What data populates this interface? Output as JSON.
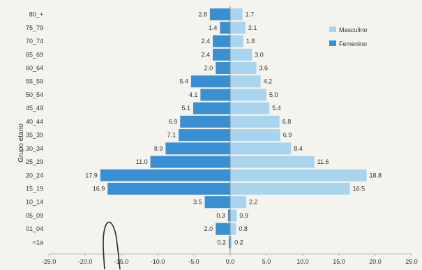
{
  "chart_data": {
    "type": "bar",
    "orientation": "horizontal",
    "title": "",
    "xlabel": "",
    "ylabel": "Grupo etario",
    "categories": [
      "80_+",
      "75_79",
      "70_74",
      "65_69",
      "60_64",
      "55_59",
      "50_54",
      "45_49",
      "40_44",
      "35_39",
      "30_34",
      "25_29",
      "20_24",
      "15_19",
      "10_14",
      "05_09",
      "01_04",
      "<1a"
    ],
    "series": [
      {
        "name": "Masculino",
        "color": "#a9d4ee",
        "values": [
          1.7,
          2.1,
          1.8,
          3.0,
          3.6,
          4.2,
          5.0,
          5.4,
          6.8,
          6.9,
          8.4,
          11.6,
          18.8,
          16.5,
          2.2,
          0.9,
          0.8,
          0.2
        ]
      },
      {
        "name": "Femenino",
        "color": "#3a8fd2",
        "values": [
          -2.8,
          -1.4,
          -2.4,
          -2.4,
          -2.0,
          -5.4,
          -4.1,
          -5.1,
          -6.9,
          -7.1,
          -8.9,
          -11.0,
          -17.9,
          -16.9,
          -3.5,
          -0.3,
          -2.0,
          -0.2
        ]
      }
    ],
    "data_labels": {
      "Masculino": [
        "1.7",
        "2.1",
        "1.8",
        "3.0",
        "3.6",
        "4.2",
        "5.0",
        "5.4",
        "6.8",
        "6.9",
        "8.4",
        "11.6",
        "18.8",
        "16.5",
        "2.2",
        "0.9",
        "0.8",
        "0.2"
      ],
      "Femenino": [
        "2.8",
        "1.4",
        "2.4",
        "2.4",
        "2.0",
        "5.4",
        "4.1",
        "5.1",
        "6.9",
        "7.1",
        "8.9",
        "11.0",
        "17.9",
        "16.9",
        "3.5",
        "0.3",
        "2.0",
        "0.2"
      ]
    },
    "x_ticks": [
      "-25.0",
      "-20.0",
      "-15.0",
      "-10.0",
      "-5.0",
      "0.0",
      "5.0",
      "10.0",
      "15.0",
      "20.0",
      "25.0"
    ],
    "xlim": [
      -25,
      25
    ],
    "grid": false,
    "legend_position": "top-right"
  }
}
